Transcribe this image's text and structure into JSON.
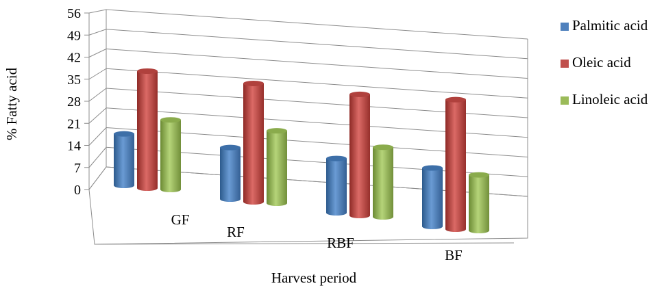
{
  "chart_data": {
    "type": "bar",
    "style": "3d-cylinder",
    "title": "",
    "xlabel": "Harvest period",
    "ylabel": "% Fatty acid",
    "categories": [
      "GF",
      "RF",
      "RBF",
      "BF"
    ],
    "ylim": [
      0,
      56
    ],
    "yticks": [
      "0",
      "7",
      "14",
      "21",
      "28",
      "35",
      "42",
      "49",
      "56"
    ],
    "grid": true,
    "legend_position": "right",
    "series": [
      {
        "name": "Palmitic acid",
        "color": "#4f81bd",
        "values": [
          18.5,
          18.5,
          19.5,
          21
        ]
      },
      {
        "name": "Oleic acid",
        "color": "#c0504d",
        "values": [
          42,
          42.5,
          43.5,
          46.5
        ]
      },
      {
        "name": "Linoleic acid",
        "color": "#9bbb59",
        "values": [
          25,
          26,
          25,
          20
        ]
      }
    ]
  }
}
